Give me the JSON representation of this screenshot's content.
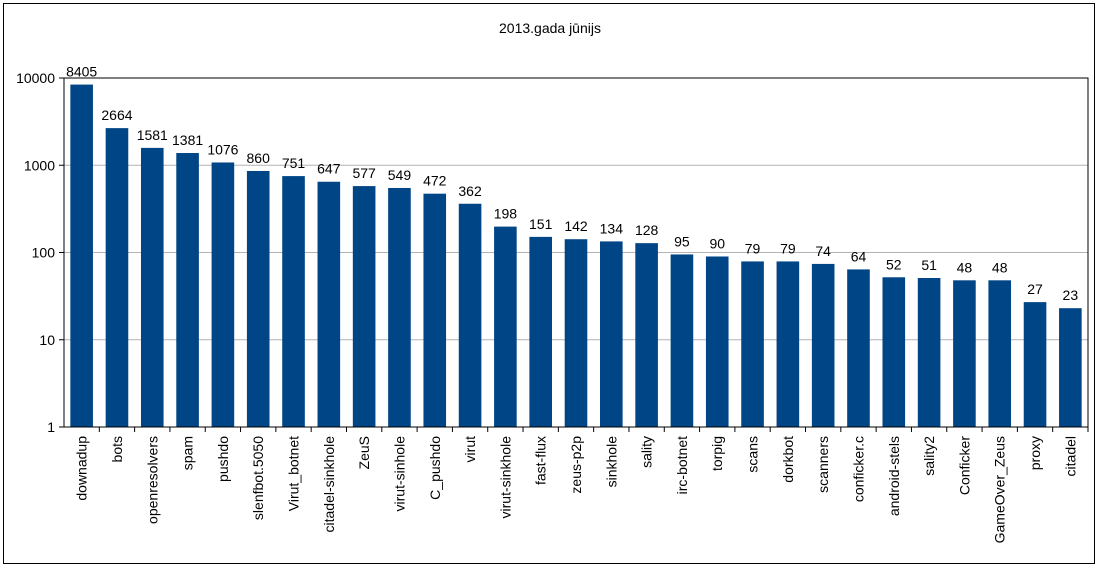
{
  "chart_data": {
    "type": "bar",
    "title": "2013.gada jūnijs",
    "xlabel": "",
    "ylabel": "",
    "yscale": "log",
    "ylim": [
      1,
      10000
    ],
    "yticks": [
      "1",
      "10",
      "100",
      "1000",
      "10000"
    ],
    "grid": "horizontal",
    "legend": "none",
    "bar_color": "#004586",
    "categories": [
      "downadup",
      "bots",
      "openresolvers",
      "spam",
      "pushdo",
      "slenfbot.5050",
      "Virut_botnet",
      "citadel-sinkhole",
      "ZeuS",
      "virut-sinhole",
      "C_pushdo",
      "virut",
      "virut-sinkhole",
      "fast-flux",
      "zeus-p2p",
      "sinkhole",
      "sality",
      "irc-botnet",
      "torpig",
      "scans",
      "dorkbot",
      "scanners",
      "conficker.c",
      "android-stels",
      "sality2",
      "Conficker",
      "GameOver_Zeus",
      "proxy",
      "citadel"
    ],
    "values": [
      8405,
      2664,
      1581,
      1381,
      1076,
      860,
      751,
      647,
      577,
      549,
      472,
      362,
      198,
      151,
      142,
      134,
      128,
      95,
      90,
      79,
      79,
      74,
      64,
      52,
      51,
      48,
      48,
      27,
      23
    ]
  }
}
